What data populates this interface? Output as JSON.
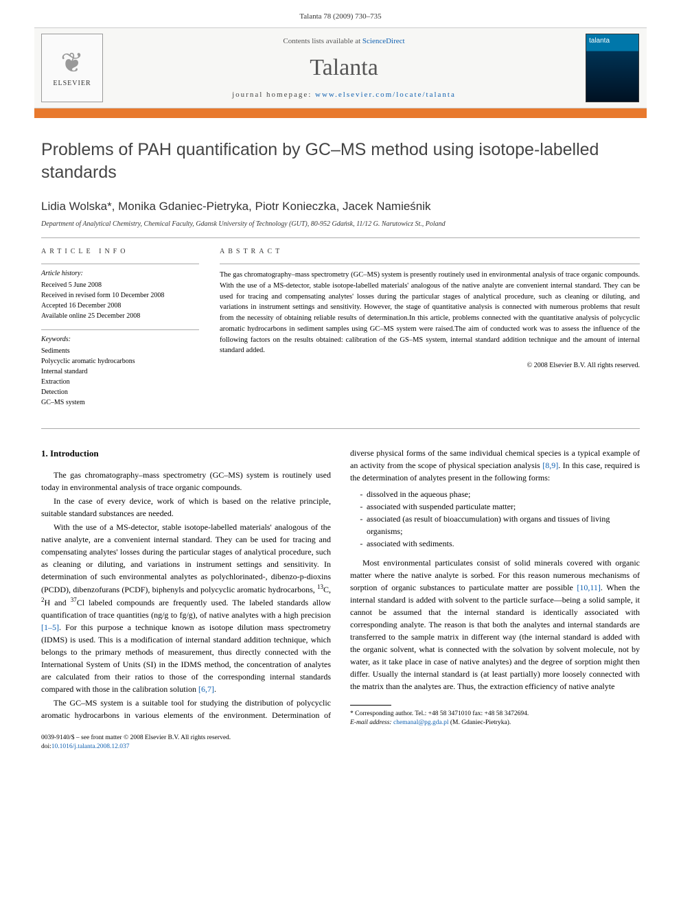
{
  "running_header": "Talanta 78 (2009) 730–735",
  "banner": {
    "publisher_name": "ELSEVIER",
    "contents_prefix": "Contents lists available at ",
    "contents_link": "ScienceDirect",
    "journal_name": "Talanta",
    "homepage_prefix": "journal homepage: ",
    "homepage_url": "www.elsevier.com/locate/talanta",
    "cover_label": "talanta"
  },
  "article": {
    "title": "Problems of PAH quantification by GC–MS method using isotope-labelled standards",
    "authors": "Lidia Wolska*, Monika Gdaniec-Pietryka, Piotr Konieczka, Jacek Namieśnik",
    "affiliation": "Department of Analytical Chemistry, Chemical Faculty, Gdansk University of Technology (GUT), 80-952 Gdańsk, 11/12 G. Narutowicz St., Poland"
  },
  "info": {
    "label": "article info",
    "history_label": "Article history:",
    "received": "Received 5 June 2008",
    "revised": "Received in revised form 10 December 2008",
    "accepted": "Accepted 16 December 2008",
    "online": "Available online 25 December 2008",
    "keywords_label": "Keywords:",
    "keywords": [
      "Sediments",
      "Polycyclic aromatic hydrocarbons",
      "Internal standard",
      "Extraction",
      "Detection",
      "GC–MS system"
    ]
  },
  "abstract": {
    "label": "abstract",
    "text": "The gas chromatography–mass spectrometry (GC–MS) system is presently routinely used in environmental analysis of trace organic compounds. With the use of a MS-detector, stable isotope-labelled materials' analogous of the native analyte are convenient internal standard. They can be used for tracing and compensating analytes' losses during the particular stages of analytical procedure, such as cleaning or diluting, and variations in instrument settings and sensitivity. However, the stage of quantitative analysis is connected with numerous problems that result from the necessity of obtaining reliable results of determination.In this article, problems connected with the quantitative analysis of polycyclic aromatic hydrocarbons in sediment samples using GC–MS system were raised.The aim of conducted work was to assess the influence of the following factors on the results obtained: calibration of the GS–MS system, internal standard addition technique and the amount of internal standard added.",
    "copyright": "© 2008 Elsevier B.V. All rights reserved."
  },
  "body": {
    "heading1": "1. Introduction",
    "p1": "The gas chromatography–mass spectrometry (GC–MS) system is routinely used today in environmental analysis of trace organic compounds.",
    "p2": "In the case of every device, work of which is based on the relative principle, suitable standard substances are needed.",
    "p3a": "With the use of a MS-detector, stable isotope-labelled materials' analogous of the native analyte, are a convenient internal standard. They can be used for tracing and compensating analytes' losses during the particular stages of analytical procedure, such as cleaning or diluting, and variations in instrument settings and sensitivity. In determination of such environmental analytes as polychlorinated-, dibenzo-p-dioxins (PCDD), dibenzofurans (PCDF), biphenyls and polycyclic aromatic hydrocarbons, ",
    "p3b": "C, ",
    "p3c": "H and ",
    "p3d": "Cl labeled compounds are frequently used. The labeled standards allow quantification of trace quantities (ng/g to fg/g), of native analytes with a high precision ",
    "p3e": ". For this purpose a technique known as isotope dilution mass spectrometry (IDMS) is used. This is a modification of internal standard addition technique, which belongs to the primary methods of measurement, thus directly connected with the International System of Units (SI) in the IDMS method, the concentration of analytes are calculated from their ratios to those of the corresponding inter",
    "p3_cont": "nal standards compared with those in the calibration solution ",
    "ref15": "[1–5]",
    "ref67": "[6,7]",
    "p3_end": ".",
    "p4a": "The GC–MS system is a suitable tool for studying the distribution of polycyclic aromatic hydrocarbons in various elements of the environment. Determination of diverse physical forms of the same individual chemical species is a typical example of an activity from the scope of physical speciation analysis ",
    "ref89": "[8,9]",
    "p4b": ". In this case, required is the determination of analytes present in the following forms:",
    "li1": "dissolved in the aqueous phase;",
    "li2": "associated with suspended particulate matter;",
    "li3": "associated (as result of bioaccumulation) with organs and tissues of living organisms;",
    "li4": "associated with sediments.",
    "p5a": "Most environmental particulates consist of solid minerals covered with organic matter where the native analyte is sorbed. For this reason numerous mechanisms of sorption of organic substances to particulate matter are possible ",
    "ref1011": "[10,11]",
    "p5b": ". When the internal standard is added with solvent to the particle surface—being a solid sample, it cannot be assumed that the internal standard is identically associated with corresponding analyte. The reason is that both the analytes and internal standards are transferred to the sample matrix in different way (the internal standard is added with the organic solvent, what is connected with the solvation by solvent molecule, not by water, as it take place in case of native analytes) and the degree of sorption might then differ. Usually the internal standard is (at least partially) more loosely connected with the matrix than the analytes are. Thus, the extraction efficiency of native analyte"
  },
  "footnotes": {
    "corr": "* Corresponding author. Tel.: +48 58 3471010 fax: +48 58 3472694.",
    "email_label": "E-mail address: ",
    "email": "chemanal@pg.gda.pl",
    "email_who": " (M. Gdaniec-Pietryka)."
  },
  "footer": {
    "line1": "0039-9140/$ – see front matter © 2008 Elsevier B.V. All rights reserved.",
    "doi_label": "doi:",
    "doi": "10.1016/j.talanta.2008.12.037"
  },
  "colors": {
    "orange": "#e8792d",
    "link": "#1060b0"
  }
}
